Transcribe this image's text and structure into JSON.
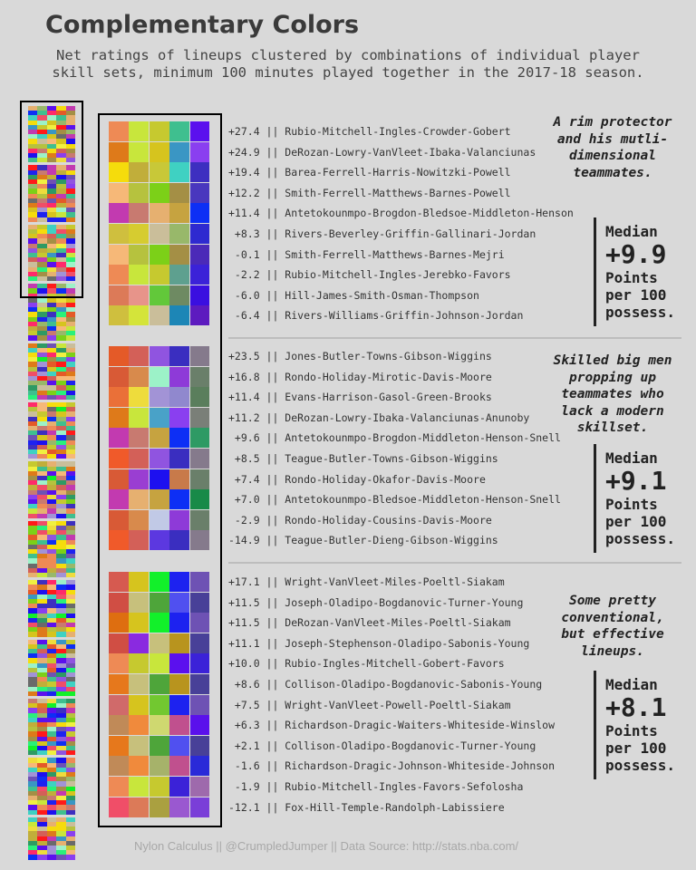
{
  "title": "Complementary Colors",
  "subtitle_line1": "Net ratings of lineups clustered by combinations of individual player",
  "subtitle_line2": "skill sets, minimum 100 minutes played together in the 2017-18 season.",
  "footer": "Nylon Calculus || @CrumpledJumper || Data Source: http://stats.nba.com/",
  "chart_data": {
    "type": "table",
    "title": "Complementary Colors",
    "clusters": [
      {
        "note": "A rim protector and his mutli-dimensional teammates.",
        "median_label": "Median",
        "median_value": "+9.9",
        "median_unit_1": "Points",
        "median_unit_2": "per 100",
        "median_unit_3": "possess.",
        "rows": [
          {
            "net": "+27.4",
            "lineup": "Rubio-Mitchell-Ingles-Crowder-Gobert",
            "colors": [
              "#ee8a55",
              "#c8e63c",
              "#c6c92f",
              "#3fbf8f",
              "#5b10ee"
            ]
          },
          {
            "net": "+24.9",
            "lineup": "DeRozan-Lowry-VanVleet-Ibaka-Valanciunas",
            "colors": [
              "#de7a1a",
              "#c8e63c",
              "#d6c41e",
              "#3a96c4",
              "#8a3ff0"
            ]
          },
          {
            "net": "+19.4",
            "lineup": "Barea-Ferrell-Harris-Nowitzki-Powell",
            "colors": [
              "#f5dc0c",
              "#c1ae3a",
              "#c8c838",
              "#3fd1c2",
              "#3d2fc0"
            ]
          },
          {
            "net": "+12.2",
            "lineup": "Smith-Ferrell-Matthews-Barnes-Powell",
            "colors": [
              "#f6b878",
              "#b6c23e",
              "#7cd018",
              "#a48f45",
              "#4937be"
            ]
          },
          {
            "net": "+11.4",
            "lineup": "Antetokounmpo-Brogdon-Bledsoe-Middleton-Henson",
            "colors": [
              "#c23ab0",
              "#c87a70",
              "#e6b070",
              "#c6a340",
              "#0d2ff5"
            ]
          },
          {
            "net": "+8.3",
            "lineup": "Rivers-Beverley-Griffin-Gallinari-Jordan",
            "colors": [
              "#cfbf3e",
              "#d6cc30",
              "#cabe9a",
              "#98b86a",
              "#2e2ad0"
            ]
          },
          {
            "net": "-0.1",
            "lineup": "Smith-Ferrell-Matthews-Barnes-Mejri",
            "colors": [
              "#f6b878",
              "#b6c23e",
              "#7cd018",
              "#a48f45",
              "#4b2ab8"
            ]
          },
          {
            "net": "-2.2",
            "lineup": "Rubio-Mitchell-Ingles-Jerebko-Favors",
            "colors": [
              "#ee8a55",
              "#c8e63c",
              "#c6c92f",
              "#5ea08f",
              "#3b22d8"
            ]
          },
          {
            "net": "-6.0",
            "lineup": "Hill-James-Smith-Osman-Thompson",
            "colors": [
              "#dc7a58",
              "#e7948a",
              "#62c83a",
              "#6e8a62",
              "#3a0fe0"
            ]
          },
          {
            "net": "-6.4",
            "lineup": "Rivers-Williams-Griffin-Johnson-Jordan",
            "colors": [
              "#cfbf3e",
              "#d4e43a",
              "#cabe9a",
              "#1d86b6",
              "#5d1bbf"
            ]
          }
        ]
      },
      {
        "note": "Skilled big men propping up teammates who lack a modern skillset.",
        "median_label": "Median",
        "median_value": "+9.1",
        "median_unit_1": "Points",
        "median_unit_2": "per 100",
        "median_unit_3": "possess.",
        "rows": [
          {
            "net": "+23.5",
            "lineup": "Jones-Butler-Towns-Gibson-Wiggins",
            "colors": [
              "#e45a28",
              "#d36058",
              "#9054e0",
              "#3a2ec0",
              "#857a8c"
            ]
          },
          {
            "net": "+16.8",
            "lineup": "Rondo-Holiday-Mirotic-Davis-Moore",
            "colors": [
              "#d85a36",
              "#d88a4c",
              "#9cf2c8",
              "#8e3ad8",
              "#6a7f6a"
            ]
          },
          {
            "net": "+11.4",
            "lineup": "Evans-Harrison-Gasol-Green-Brooks",
            "colors": [
              "#ea7038",
              "#eedc3c",
              "#a293d6",
              "#9088ce",
              "#5a7e5c"
            ]
          },
          {
            "net": "+11.2",
            "lineup": "DeRozan-Lowry-Ibaka-Valanciunas-Anunoby",
            "colors": [
              "#de7a1a",
              "#c8e63c",
              "#49a2c8",
              "#8a3ff0",
              "#7a7f78"
            ]
          },
          {
            "net": "+9.6",
            "lineup": "Antetokounmpo-Brogdon-Middleton-Henson-Snell",
            "colors": [
              "#c23ab0",
              "#c87a70",
              "#c6a340",
              "#0d2ff5",
              "#2e9a64"
            ]
          },
          {
            "net": "+8.5",
            "lineup": "Teague-Butler-Towns-Gibson-Wiggins",
            "colors": [
              "#f05a2a",
              "#d36058",
              "#9054e0",
              "#3a2ec0",
              "#857a8c"
            ]
          },
          {
            "net": "+7.4",
            "lineup": "Rondo-Holiday-Okafor-Davis-Moore",
            "colors": [
              "#d85a36",
              "#9a3ed2",
              "#1d10f0",
              "#c87a4a",
              "#6a7f6a"
            ]
          },
          {
            "net": "+7.0",
            "lineup": "Antetokounmpo-Bledsoe-Middleton-Henson-Snell",
            "colors": [
              "#c23ab0",
              "#e6b070",
              "#c6a340",
              "#0d2ff5",
              "#188a48"
            ]
          },
          {
            "net": "-2.9",
            "lineup": "Rondo-Holiday-Cousins-Davis-Moore",
            "colors": [
              "#d85a36",
              "#d88a4c",
              "#c1c9e6",
              "#8e3ad8",
              "#6a7f6a"
            ]
          },
          {
            "net": "-14.9",
            "lineup": "Teague-Butler-Dieng-Gibson-Wiggins",
            "colors": [
              "#f05a2a",
              "#d36058",
              "#5c38e0",
              "#3a2ec0",
              "#857a8c"
            ]
          }
        ]
      },
      {
        "note": "Some pretty conventional, but effective lineups.",
        "median_label": "Median",
        "median_value": "+8.1",
        "median_unit_1": "Points",
        "median_unit_2": "per 100",
        "median_unit_3": "possess.",
        "rows": [
          {
            "net": "+17.1",
            "lineup": "Wright-VanVleet-Miles-Poeltl-Siakam",
            "colors": [
              "#d65a50",
              "#d6c41e",
              "#12f02a",
              "#1d22f0",
              "#6e52b4"
            ]
          },
          {
            "net": "+11.5",
            "lineup": "Joseph-Oladipo-Bogdanovic-Turner-Young",
            "colors": [
              "#d04e44",
              "#c7c07c",
              "#4ea53a",
              "#5050f0",
              "#484098"
            ]
          },
          {
            "net": "+11.5",
            "lineup": "DeRozan-VanVleet-Miles-Poeltl-Siakam",
            "colors": [
              "#de6e10",
              "#d6c41e",
              "#12f02a",
              "#1d22f0",
              "#6e52b4"
            ]
          },
          {
            "net": "+11.1",
            "lineup": "Joseph-Stephenson-Oladipo-Sabonis-Young",
            "colors": [
              "#d04e44",
              "#8a2ae0",
              "#c7c07c",
              "#b8941e",
              "#484098"
            ]
          },
          {
            "net": "+10.0",
            "lineup": "Rubio-Ingles-Mitchell-Gobert-Favors",
            "colors": [
              "#ee8a55",
              "#c6c92f",
              "#c8e63c",
              "#5b10ee",
              "#3b22d8"
            ]
          },
          {
            "net": "+8.6",
            "lineup": "Collison-Oladipo-Bogdanovic-Sabonis-Young",
            "colors": [
              "#e6781c",
              "#c7c07c",
              "#4ea53a",
              "#b8941e",
              "#484098"
            ]
          },
          {
            "net": "+7.5",
            "lineup": "Wright-VanVleet-Powell-Poeltl-Siakam",
            "colors": [
              "#d06a6a",
              "#d6c41e",
              "#72c830",
              "#1d22f0",
              "#6e52b4"
            ]
          },
          {
            "net": "+6.3",
            "lineup": "Richardson-Dragic-Waiters-Whiteside-Winslow",
            "colors": [
              "#c08a58",
              "#f08a3c",
              "#cfd870",
              "#c0508e",
              "#5a10ec"
            ]
          },
          {
            "net": "+2.1",
            "lineup": "Collison-Oladipo-Bogdanovic-Turner-Young",
            "colors": [
              "#e6781c",
              "#c7c07c",
              "#4ea53a",
              "#5050f0",
              "#484098"
            ]
          },
          {
            "net": "-1.6",
            "lineup": "Richardson-Dragic-Johnson-Whiteside-Johnson",
            "colors": [
              "#c08a58",
              "#f08a3c",
              "#a6b26a",
              "#c0508e",
              "#2a2ad8"
            ]
          },
          {
            "net": "-1.9",
            "lineup": "Rubio-Mitchell-Ingles-Favors-Sefolosha",
            "colors": [
              "#ee8a55",
              "#c8e63c",
              "#c6c92f",
              "#3b22d8",
              "#9e6aac"
            ]
          },
          {
            "net": "-12.1",
            "lineup": "Fox-Hill-Temple-Randolph-Labissiere",
            "colors": [
              "#f04e68",
              "#dc7a58",
              "#aaa040",
              "#9a58d0",
              "#7a3ed8"
            ]
          }
        ]
      }
    ],
    "thumbnail_palette": [
      "#ee8a55",
      "#c8e63c",
      "#c6c92f",
      "#3fbf8f",
      "#5b10ee",
      "#de7a1a",
      "#d6c41e",
      "#3a96c4",
      "#8a3ff0",
      "#f5dc0c",
      "#c1ae3a",
      "#3fd1c2",
      "#3d2fc0",
      "#f6b878",
      "#b6c23e",
      "#7cd018",
      "#a48f45",
      "#c23ab0",
      "#c87a70",
      "#e6b070",
      "#0d2ff5",
      "#cabe9a",
      "#98b86a",
      "#e45a28",
      "#d36058",
      "#9054e0",
      "#9cf2c8",
      "#eedc3c",
      "#a293d6",
      "#2e9a64",
      "#1d10f0",
      "#f04e68",
      "#12f02a",
      "#1d22f0",
      "#6e52b4",
      "#ff2a6a",
      "#2af07a",
      "#f0f040",
      "#ff1a1a",
      "#6a6a6a"
    ]
  }
}
